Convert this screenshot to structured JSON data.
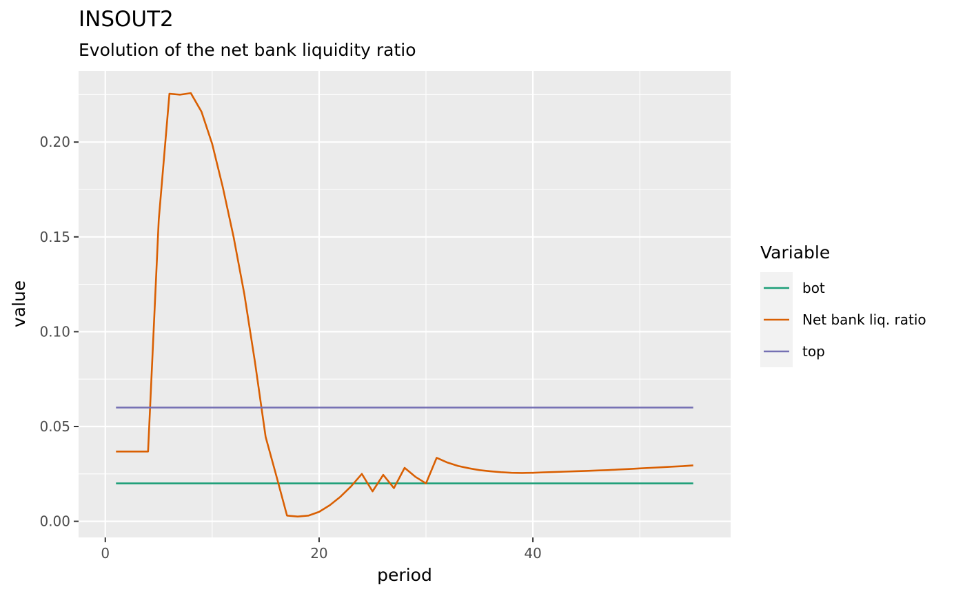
{
  "chart_data": {
    "type": "line",
    "title": "INSOUT2",
    "subtitle": "Evolution of the net bank liquidity ratio",
    "xlabel": "period",
    "ylabel": "value",
    "xlim": [
      -2.5,
      58.5
    ],
    "ylim": [
      -0.0085,
      0.2375
    ],
    "xticks": [
      0,
      20,
      40
    ],
    "xtick_labels": [
      "0",
      "20",
      "40"
    ],
    "xminor": [
      10,
      30,
      50
    ],
    "yticks": [
      0.0,
      0.05,
      0.1,
      0.15,
      0.2
    ],
    "ytick_labels": [
      "0.00",
      "0.05",
      "0.10",
      "0.15",
      "0.20"
    ],
    "yminor": [
      0.025,
      0.075,
      0.125,
      0.175,
      0.225
    ],
    "grid": true,
    "background": "#ebebeb",
    "legend": {
      "title": "Variable",
      "position": "right"
    },
    "series": [
      {
        "name": "bot",
        "color": "#1b9e77",
        "x": [
          1,
          55
        ],
        "values": [
          0.02,
          0.02
        ]
      },
      {
        "name": "Net bank liq. ratio",
        "color": "#d95f02",
        "x": [
          1,
          2,
          3,
          4,
          5,
          6,
          7,
          8,
          9,
          10,
          11,
          12,
          13,
          14,
          15,
          16,
          17,
          18,
          19,
          20,
          21,
          22,
          23,
          24,
          25,
          26,
          27,
          28,
          29,
          30,
          31,
          32,
          33,
          34,
          35,
          36,
          37,
          38,
          39,
          40,
          41,
          42,
          43,
          44,
          45,
          46,
          47,
          48,
          49,
          50,
          51,
          52,
          53,
          54,
          55
        ],
        "values": [
          0.0368,
          0.0368,
          0.0368,
          0.0368,
          0.159,
          0.2255,
          0.225,
          0.2258,
          0.216,
          0.199,
          0.176,
          0.15,
          0.12,
          0.084,
          0.0445,
          0.024,
          0.003,
          0.0025,
          0.003,
          0.005,
          0.0085,
          0.013,
          0.0185,
          0.025,
          0.0158,
          0.0245,
          0.0175,
          0.0282,
          0.0235,
          0.02,
          0.0335,
          0.031,
          0.0292,
          0.028,
          0.027,
          0.0264,
          0.0259,
          0.0256,
          0.0255,
          0.0256,
          0.0258,
          0.026,
          0.0262,
          0.0264,
          0.0266,
          0.0268,
          0.027,
          0.0273,
          0.0276,
          0.0279,
          0.0282,
          0.0285,
          0.0288,
          0.0291,
          0.0295
        ]
      },
      {
        "name": "top",
        "color": "#7570b3",
        "x": [
          1,
          55
        ],
        "values": [
          0.06,
          0.06
        ]
      }
    ]
  }
}
